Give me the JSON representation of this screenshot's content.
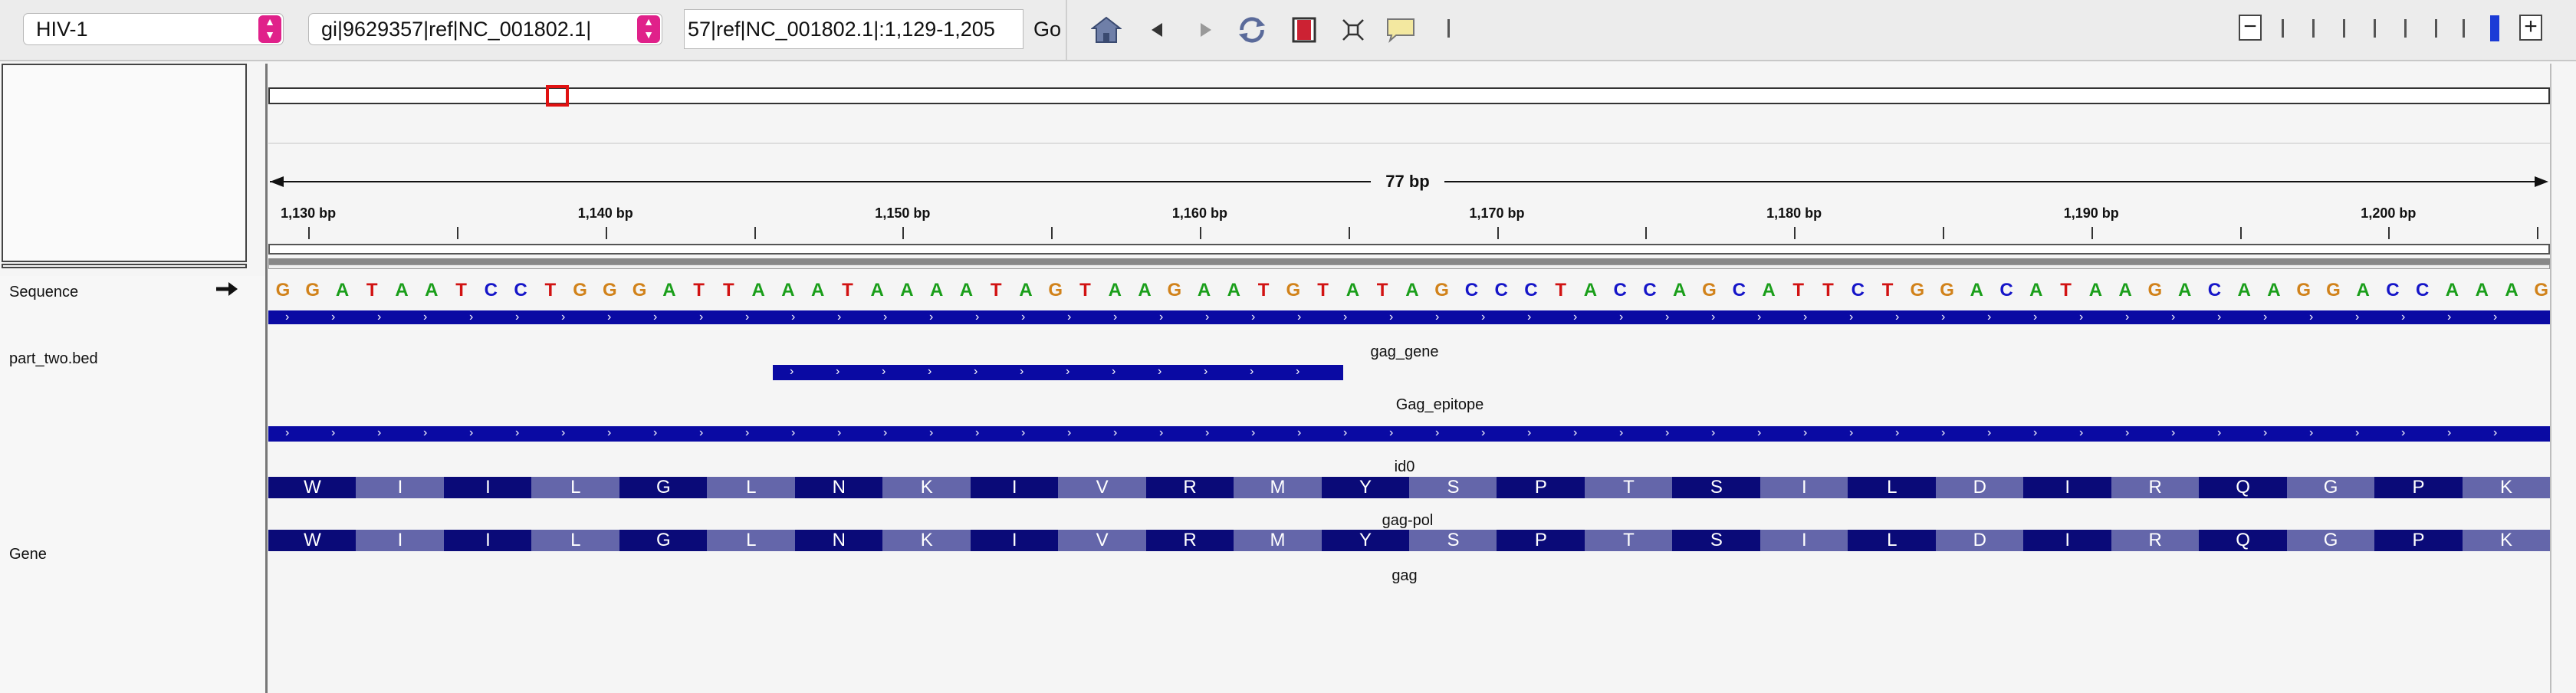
{
  "toolbar": {
    "genome": "HIV-1",
    "chromosome": "gi|9629357|ref|NC_001802.1|",
    "locus": "57|ref|NC_001802.1|:1,129-1,205",
    "go_label": "Go",
    "icons": [
      "home-icon",
      "back-icon",
      "forward-icon",
      "refresh-icon",
      "roi-icon",
      "fit-icon",
      "popup-icon"
    ]
  },
  "ruler": {
    "span_label": "77 bp",
    "ticks": [
      "1,130 bp",
      "1,140 bp",
      "1,150 bp",
      "1,160 bp",
      "1,170 bp",
      "1,180 bp",
      "1,190 bp",
      "1,200 bp"
    ]
  },
  "tracks": {
    "sequence_label": "Sequence",
    "bed_label": "part_two.bed",
    "gene_label": "Gene"
  },
  "sequence": "GGATAATCCTGGGATTAAATAAAATAGTAAGAATGTATAGCCCTACCAGCATTCTGGACATAAGACAAGGACCAAAG",
  "nucleotide_colors": {
    "A": "#1a9e1a",
    "C": "#1515c8",
    "G": "#d1821a",
    "T": "#d11212"
  },
  "features": {
    "gag_gene": "gag_gene",
    "gag_epitope": "Gag_epitope",
    "id0": "id0",
    "gag_pol": "gag-pol",
    "gag": "gag"
  },
  "amino_acids": [
    "W",
    "I",
    "I",
    "L",
    "G",
    "L",
    "N",
    "K",
    "I",
    "V",
    "R",
    "M",
    "Y",
    "S",
    "P",
    "T",
    "S",
    "I",
    "L",
    "D",
    "I",
    "R",
    "Q",
    "G",
    "P",
    "K"
  ],
  "colors": {
    "feature_blue": "#0a0aa3",
    "aa_dark": "#0a0a78",
    "aa_light": "#6466aa"
  }
}
